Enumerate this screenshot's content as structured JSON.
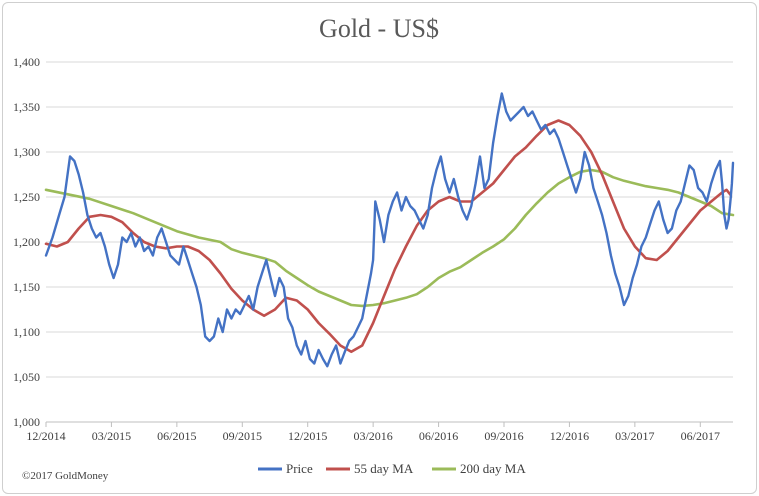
{
  "chart_data": {
    "type": "line",
    "title": "Gold - US$",
    "xlabel": "",
    "ylabel": "",
    "ylim": [
      1000,
      1400
    ],
    "y_ticks": [
      1000,
      1050,
      1100,
      1150,
      1200,
      1250,
      1300,
      1350,
      1400
    ],
    "y_tick_labels": [
      "1,000",
      "1,050",
      "1,100",
      "1,150",
      "1,200",
      "1,250",
      "1,300",
      "1,350",
      "1,400"
    ],
    "x_tick_labels": [
      "12/2014",
      "03/2015",
      "06/2015",
      "09/2015",
      "12/2015",
      "03/2016",
      "06/2016",
      "09/2016",
      "12/2016",
      "03/2017",
      "06/2017"
    ],
    "x_range": [
      0,
      31.5
    ],
    "grid": "horizontal",
    "legend_position": "bottom",
    "series": [
      {
        "name": "Price",
        "color": "#4472c4",
        "points": [
          [
            0.0,
            1185
          ],
          [
            0.3,
            1205
          ],
          [
            0.6,
            1230
          ],
          [
            0.85,
            1250
          ],
          [
            1.1,
            1295
          ],
          [
            1.3,
            1290
          ],
          [
            1.5,
            1275
          ],
          [
            1.7,
            1255
          ],
          [
            1.9,
            1230
          ],
          [
            2.1,
            1215
          ],
          [
            2.3,
            1205
          ],
          [
            2.5,
            1210
          ],
          [
            2.7,
            1195
          ],
          [
            2.9,
            1175
          ],
          [
            3.1,
            1160
          ],
          [
            3.3,
            1175
          ],
          [
            3.5,
            1205
          ],
          [
            3.7,
            1200
          ],
          [
            3.9,
            1210
          ],
          [
            4.1,
            1195
          ],
          [
            4.3,
            1205
          ],
          [
            4.5,
            1190
          ],
          [
            4.7,
            1195
          ],
          [
            4.9,
            1185
          ],
          [
            5.1,
            1205
          ],
          [
            5.3,
            1215
          ],
          [
            5.5,
            1200
          ],
          [
            5.7,
            1185
          ],
          [
            5.9,
            1180
          ],
          [
            6.1,
            1175
          ],
          [
            6.3,
            1195
          ],
          [
            6.5,
            1180
          ],
          [
            6.7,
            1165
          ],
          [
            6.9,
            1150
          ],
          [
            7.1,
            1130
          ],
          [
            7.3,
            1095
          ],
          [
            7.5,
            1090
          ],
          [
            7.7,
            1095
          ],
          [
            7.9,
            1115
          ],
          [
            8.1,
            1100
          ],
          [
            8.3,
            1125
          ],
          [
            8.5,
            1115
          ],
          [
            8.7,
            1125
          ],
          [
            8.9,
            1120
          ],
          [
            9.1,
            1130
          ],
          [
            9.3,
            1140
          ],
          [
            9.5,
            1125
          ],
          [
            9.7,
            1150
          ],
          [
            9.9,
            1165
          ],
          [
            10.1,
            1180
          ],
          [
            10.3,
            1160
          ],
          [
            10.5,
            1140
          ],
          [
            10.7,
            1160
          ],
          [
            10.9,
            1150
          ],
          [
            11.1,
            1115
          ],
          [
            11.3,
            1105
          ],
          [
            11.5,
            1085
          ],
          [
            11.7,
            1075
          ],
          [
            11.9,
            1090
          ],
          [
            12.1,
            1070
          ],
          [
            12.3,
            1065
          ],
          [
            12.5,
            1080
          ],
          [
            12.7,
            1070
          ],
          [
            12.9,
            1062
          ],
          [
            13.1,
            1075
          ],
          [
            13.3,
            1085
          ],
          [
            13.5,
            1065
          ],
          [
            13.7,
            1078
          ],
          [
            13.9,
            1090
          ],
          [
            14.1,
            1095
          ],
          [
            14.3,
            1105
          ],
          [
            14.5,
            1115
          ],
          [
            14.7,
            1140
          ],
          [
            14.9,
            1165
          ],
          [
            15.0,
            1180
          ],
          [
            15.1,
            1245
          ],
          [
            15.3,
            1225
          ],
          [
            15.5,
            1200
          ],
          [
            15.7,
            1230
          ],
          [
            15.9,
            1245
          ],
          [
            16.1,
            1255
          ],
          [
            16.3,
            1235
          ],
          [
            16.5,
            1250
          ],
          [
            16.7,
            1240
          ],
          [
            16.9,
            1235
          ],
          [
            17.1,
            1225
          ],
          [
            17.3,
            1215
          ],
          [
            17.5,
            1230
          ],
          [
            17.7,
            1260
          ],
          [
            17.9,
            1280
          ],
          [
            18.1,
            1295
          ],
          [
            18.3,
            1270
          ],
          [
            18.5,
            1255
          ],
          [
            18.7,
            1270
          ],
          [
            18.9,
            1250
          ],
          [
            19.1,
            1235
          ],
          [
            19.3,
            1225
          ],
          [
            19.5,
            1240
          ],
          [
            19.7,
            1265
          ],
          [
            19.9,
            1295
          ],
          [
            20.1,
            1260
          ],
          [
            20.3,
            1270
          ],
          [
            20.5,
            1310
          ],
          [
            20.7,
            1340
          ],
          [
            20.9,
            1365
          ],
          [
            21.1,
            1345
          ],
          [
            21.3,
            1335
          ],
          [
            21.5,
            1340
          ],
          [
            21.7,
            1345
          ],
          [
            21.9,
            1350
          ],
          [
            22.1,
            1340
          ],
          [
            22.3,
            1345
          ],
          [
            22.5,
            1335
          ],
          [
            22.7,
            1325
          ],
          [
            22.9,
            1330
          ],
          [
            23.1,
            1320
          ],
          [
            23.3,
            1325
          ],
          [
            23.5,
            1315
          ],
          [
            23.7,
            1300
          ],
          [
            23.9,
            1285
          ],
          [
            24.1,
            1270
          ],
          [
            24.3,
            1255
          ],
          [
            24.5,
            1270
          ],
          [
            24.7,
            1300
          ],
          [
            24.9,
            1285
          ],
          [
            25.1,
            1260
          ],
          [
            25.3,
            1245
          ],
          [
            25.5,
            1230
          ],
          [
            25.7,
            1210
          ],
          [
            25.9,
            1185
          ],
          [
            26.1,
            1165
          ],
          [
            26.3,
            1150
          ],
          [
            26.5,
            1130
          ],
          [
            26.7,
            1140
          ],
          [
            26.9,
            1160
          ],
          [
            27.1,
            1175
          ],
          [
            27.3,
            1195
          ],
          [
            27.5,
            1205
          ],
          [
            27.7,
            1220
          ],
          [
            27.9,
            1235
          ],
          [
            28.1,
            1245
          ],
          [
            28.3,
            1225
          ],
          [
            28.5,
            1210
          ],
          [
            28.7,
            1215
          ],
          [
            28.9,
            1235
          ],
          [
            29.1,
            1245
          ],
          [
            29.3,
            1265
          ],
          [
            29.5,
            1285
          ],
          [
            29.7,
            1280
          ],
          [
            29.9,
            1260
          ],
          [
            30.1,
            1255
          ],
          [
            30.3,
            1245
          ],
          [
            30.5,
            1265
          ],
          [
            30.7,
            1280
          ],
          [
            30.9,
            1290
          ],
          [
            31.0,
            1265
          ],
          [
            31.1,
            1230
          ],
          [
            31.2,
            1215
          ],
          [
            31.3,
            1225
          ],
          [
            31.4,
            1250
          ],
          [
            31.45,
            1265
          ],
          [
            31.5,
            1288
          ]
        ]
      },
      {
        "name": "55 day MA",
        "color": "#c0504d",
        "points": [
          [
            0.0,
            1198
          ],
          [
            0.5,
            1195
          ],
          [
            1.0,
            1200
          ],
          [
            1.5,
            1215
          ],
          [
            2.0,
            1228
          ],
          [
            2.5,
            1230
          ],
          [
            3.0,
            1228
          ],
          [
            3.5,
            1222
          ],
          [
            4.0,
            1210
          ],
          [
            4.5,
            1200
          ],
          [
            5.0,
            1195
          ],
          [
            5.5,
            1193
          ],
          [
            6.0,
            1195
          ],
          [
            6.5,
            1195
          ],
          [
            7.0,
            1190
          ],
          [
            7.5,
            1180
          ],
          [
            8.0,
            1165
          ],
          [
            8.5,
            1148
          ],
          [
            9.0,
            1135
          ],
          [
            9.5,
            1125
          ],
          [
            10.0,
            1118
          ],
          [
            10.5,
            1125
          ],
          [
            11.0,
            1138
          ],
          [
            11.5,
            1135
          ],
          [
            12.0,
            1125
          ],
          [
            12.5,
            1110
          ],
          [
            13.0,
            1098
          ],
          [
            13.5,
            1085
          ],
          [
            14.0,
            1078
          ],
          [
            14.5,
            1085
          ],
          [
            15.0,
            1110
          ],
          [
            15.5,
            1140
          ],
          [
            16.0,
            1170
          ],
          [
            16.5,
            1195
          ],
          [
            17.0,
            1218
          ],
          [
            17.5,
            1235
          ],
          [
            18.0,
            1245
          ],
          [
            18.5,
            1250
          ],
          [
            19.0,
            1245
          ],
          [
            19.5,
            1245
          ],
          [
            20.0,
            1255
          ],
          [
            20.5,
            1265
          ],
          [
            21.0,
            1280
          ],
          [
            21.5,
            1295
          ],
          [
            22.0,
            1305
          ],
          [
            22.5,
            1318
          ],
          [
            23.0,
            1330
          ],
          [
            23.5,
            1335
          ],
          [
            24.0,
            1330
          ],
          [
            24.5,
            1318
          ],
          [
            25.0,
            1300
          ],
          [
            25.5,
            1275
          ],
          [
            26.0,
            1245
          ],
          [
            26.5,
            1215
          ],
          [
            27.0,
            1195
          ],
          [
            27.5,
            1182
          ],
          [
            28.0,
            1180
          ],
          [
            28.5,
            1190
          ],
          [
            29.0,
            1205
          ],
          [
            29.5,
            1220
          ],
          [
            30.0,
            1235
          ],
          [
            30.5,
            1245
          ],
          [
            31.0,
            1255
          ],
          [
            31.2,
            1258
          ],
          [
            31.4,
            1252
          ]
        ]
      },
      {
        "name": "200 day MA",
        "color": "#9bbb59",
        "points": [
          [
            0.0,
            1258
          ],
          [
            1.0,
            1253
          ],
          [
            2.0,
            1248
          ],
          [
            3.0,
            1240
          ],
          [
            4.0,
            1232
          ],
          [
            5.0,
            1222
          ],
          [
            6.0,
            1212
          ],
          [
            7.0,
            1205
          ],
          [
            8.0,
            1200
          ],
          [
            8.5,
            1192
          ],
          [
            9.0,
            1188
          ],
          [
            9.5,
            1185
          ],
          [
            10.0,
            1182
          ],
          [
            10.5,
            1178
          ],
          [
            11.0,
            1168
          ],
          [
            11.5,
            1160
          ],
          [
            12.0,
            1152
          ],
          [
            12.5,
            1145
          ],
          [
            13.0,
            1140
          ],
          [
            13.5,
            1135
          ],
          [
            14.0,
            1130
          ],
          [
            14.5,
            1129
          ],
          [
            15.0,
            1130
          ],
          [
            15.5,
            1132
          ],
          [
            16.0,
            1135
          ],
          [
            16.5,
            1138
          ],
          [
            17.0,
            1142
          ],
          [
            17.5,
            1150
          ],
          [
            18.0,
            1160
          ],
          [
            18.5,
            1167
          ],
          [
            19.0,
            1172
          ],
          [
            19.5,
            1180
          ],
          [
            20.0,
            1188
          ],
          [
            20.5,
            1195
          ],
          [
            21.0,
            1203
          ],
          [
            21.5,
            1215
          ],
          [
            22.0,
            1230
          ],
          [
            22.5,
            1243
          ],
          [
            23.0,
            1255
          ],
          [
            23.5,
            1265
          ],
          [
            24.0,
            1272
          ],
          [
            24.5,
            1278
          ],
          [
            25.0,
            1280
          ],
          [
            25.5,
            1278
          ],
          [
            26.0,
            1272
          ],
          [
            26.5,
            1268
          ],
          [
            27.0,
            1265
          ],
          [
            27.5,
            1262
          ],
          [
            28.0,
            1260
          ],
          [
            28.5,
            1258
          ],
          [
            29.0,
            1255
          ],
          [
            29.5,
            1250
          ],
          [
            30.0,
            1245
          ],
          [
            30.5,
            1240
          ],
          [
            31.0,
            1232
          ],
          [
            31.5,
            1230
          ]
        ]
      }
    ]
  },
  "footer": {
    "copyright": "©2017 GoldMoney"
  }
}
